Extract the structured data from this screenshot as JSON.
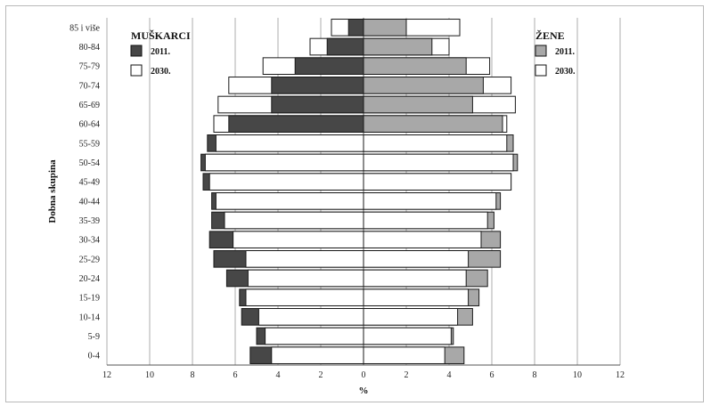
{
  "chart_data": {
    "type": "bar",
    "subtype": "population-pyramid",
    "xlabel": "%",
    "ylabel": "Dobna skupina",
    "xlim": [
      -12,
      12
    ],
    "xticks": [
      "12",
      "10",
      "8",
      "6",
      "4",
      "2",
      "0",
      "2",
      "4",
      "6",
      "8",
      "10",
      "12"
    ],
    "categories": [
      "0-4",
      "5-9",
      "10-14",
      "15-19",
      "20-24",
      "25-29",
      "30-34",
      "35-39",
      "40-44",
      "45-49",
      "50-54",
      "55-59",
      "60-64",
      "65-69",
      "70-74",
      "75-79",
      "80-84",
      "85 i više"
    ],
    "legend_left": {
      "title": "MUŠKARCI",
      "items": [
        {
          "label": "2011.",
          "color": "#474747"
        },
        {
          "label": "2030.",
          "color": "#ffffff"
        }
      ]
    },
    "legend_right": {
      "title": "ŽENE",
      "items": [
        {
          "label": "2011.",
          "color": "#a8a8a8"
        },
        {
          "label": "2030.",
          "color": "#ffffff"
        }
      ]
    },
    "series": [
      {
        "name": "Muškarci 2011.",
        "side": "left",
        "color": "#474747",
        "values": [
          5.3,
          5.0,
          5.7,
          5.8,
          6.4,
          7.0,
          7.2,
          7.1,
          7.1,
          7.5,
          7.6,
          7.3,
          6.3,
          4.3,
          4.3,
          3.2,
          1.7,
          0.7
        ]
      },
      {
        "name": "Muškarci 2030.",
        "side": "left",
        "color": "#ffffff",
        "values": [
          4.3,
          4.6,
          4.9,
          5.5,
          5.4,
          5.5,
          6.1,
          6.5,
          6.9,
          7.2,
          7.4,
          6.9,
          7.0,
          6.8,
          6.3,
          4.7,
          2.5,
          1.5
        ]
      },
      {
        "name": "Žene 2011.",
        "side": "right",
        "color": "#a8a8a8",
        "values": [
          4.7,
          4.2,
          5.1,
          5.4,
          5.8,
          6.4,
          6.4,
          6.1,
          6.4,
          6.9,
          7.2,
          7.0,
          6.5,
          5.1,
          5.6,
          4.8,
          3.2,
          2.0
        ]
      },
      {
        "name": "Žene 2030.",
        "side": "right",
        "color": "#ffffff",
        "values": [
          3.8,
          4.1,
          4.4,
          4.9,
          4.8,
          4.9,
          5.5,
          5.8,
          6.2,
          6.9,
          7.0,
          6.7,
          6.7,
          7.1,
          6.9,
          5.9,
          4.0,
          4.5
        ]
      }
    ]
  }
}
